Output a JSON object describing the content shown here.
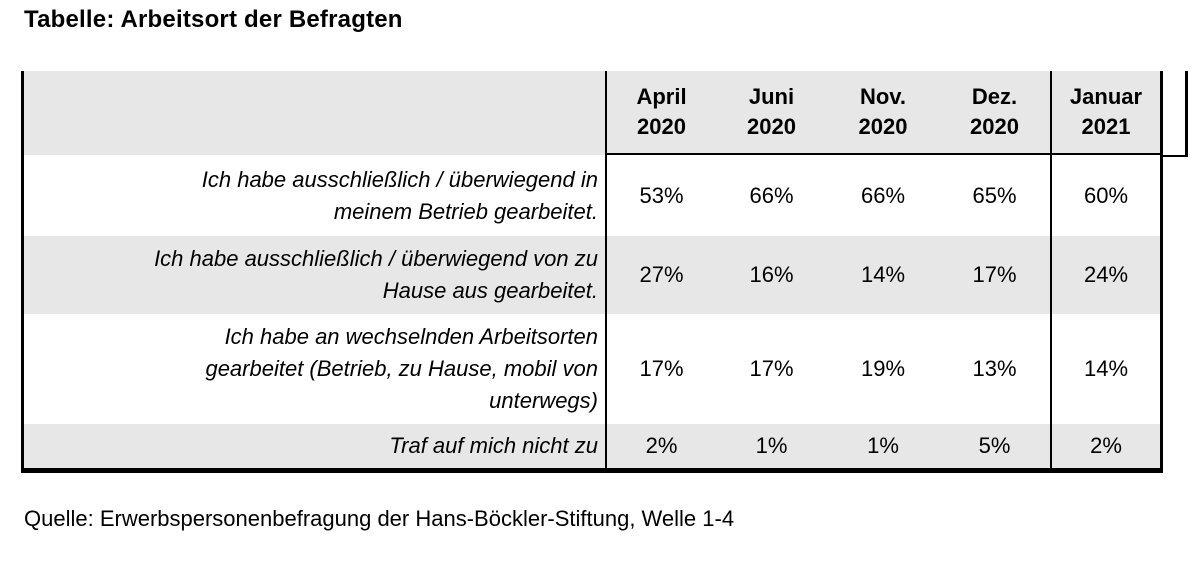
{
  "title": "Tabelle: Arbeitsort der Befragten",
  "table": {
    "column_headers": [
      "April\n2020",
      "Juni\n2020",
      "Nov.\n2020",
      "Dez.\n2020",
      "Januar\n2021"
    ],
    "rows": [
      {
        "label": "Ich habe ausschließlich / überwiegend in\nmeinem Betrieb gearbeitet.",
        "values": [
          "53%",
          "66%",
          "66%",
          "65%",
          "60%"
        ]
      },
      {
        "label": "Ich habe ausschließlich / überwiegend von zu\nHause aus gearbeitet.",
        "values": [
          "27%",
          "16%",
          "14%",
          "17%",
          "24%"
        ]
      },
      {
        "label": "Ich habe an wechselnden Arbeitsorten\ngearbeitet (Betrieb, zu Hause, mobil von\nunterwegs)",
        "values": [
          "17%",
          "17%",
          "19%",
          "13%",
          "14%"
        ]
      },
      {
        "label": "Traf auf mich nicht zu",
        "values": [
          "2%",
          "1%",
          "1%",
          "5%",
          "2%"
        ]
      }
    ]
  },
  "source": "Quelle: Erwerbspersonenbefragung der Hans-Böckler-Stiftung, Welle 1-4",
  "colors": {
    "shaded_row": "#e7e7e7",
    "border": "#000000",
    "text": "#000000"
  }
}
